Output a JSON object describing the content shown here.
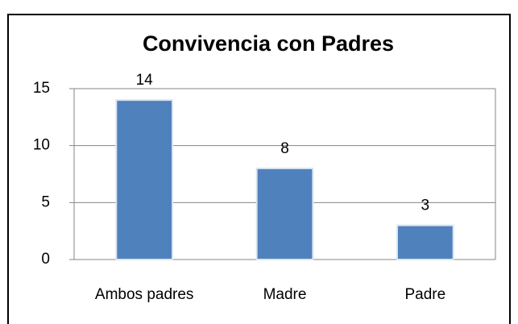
{
  "chart_data": {
    "type": "bar",
    "title": "Convivencia con Padres",
    "categories": [
      "Ambos padres",
      "Madre",
      "Padre"
    ],
    "values": [
      14,
      8,
      3
    ],
    "color": "#4f81bd",
    "ylim": [
      0,
      15
    ],
    "yticks": [
      0,
      5,
      10,
      15
    ],
    "grid": true
  }
}
